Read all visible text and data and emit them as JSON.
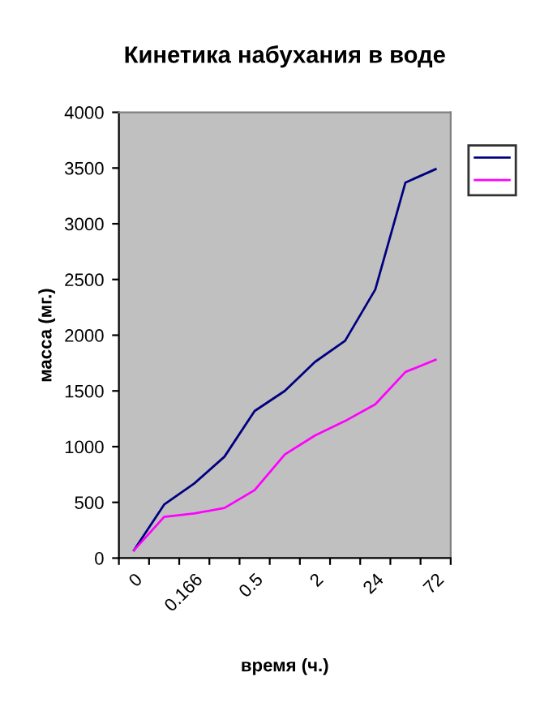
{
  "chart_data": {
    "type": "line",
    "title": "Кинетика набухания в воде",
    "xlabel": "время (ч.)",
    "ylabel": "масса (мг.)",
    "categories": [
      "0",
      null,
      "0.166",
      null,
      "0.5",
      null,
      "2",
      null,
      "24",
      null,
      "72"
    ],
    "series": [
      {
        "color": "#000080",
        "values": [
          70,
          480,
          670,
          910,
          1320,
          1500,
          1760,
          1950,
          2410,
          3370,
          3490
        ]
      },
      {
        "color": "#ff00ff",
        "values": [
          70,
          370,
          400,
          450,
          610,
          930,
          1100,
          1230,
          1380,
          1670,
          1780
        ]
      }
    ],
    "ylim": [
      0,
      4000
    ],
    "yticks": [
      0,
      500,
      1000,
      1500,
      2000,
      2500,
      3000,
      3500,
      4000
    ],
    "grid": false,
    "marker": "none",
    "line_style": "solid"
  }
}
